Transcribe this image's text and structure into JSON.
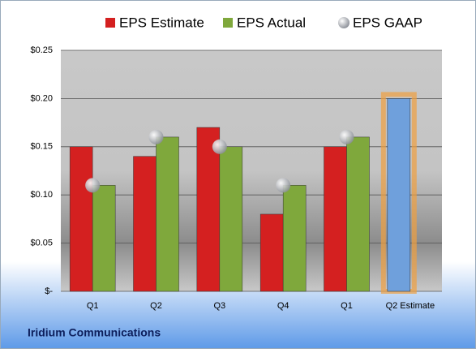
{
  "chart_data": {
    "type": "bar",
    "footer": "Iridium Communications",
    "categories": [
      "Q1",
      "Q2",
      "Q3",
      "Q4",
      "Q1",
      "Q2 Estimate"
    ],
    "series": [
      {
        "name": "EPS Estimate",
        "color": "#d42020",
        "colors": [
          "#d42020",
          "#d42020",
          "#d42020",
          "#d42020",
          "#d42020",
          "#6fa0dc"
        ],
        "values": [
          0.15,
          0.14,
          0.17,
          0.08,
          0.15,
          0.2
        ]
      },
      {
        "name": "EPS Actual",
        "color": "#7fa83c",
        "values": [
          0.11,
          0.16,
          0.15,
          0.11,
          0.16,
          null
        ]
      },
      {
        "name": "EPS GAAP",
        "color": "#b8bcc2",
        "marker": "circle",
        "values": [
          0.11,
          0.16,
          0.15,
          0.11,
          0.16,
          null
        ]
      }
    ],
    "ylim": [
      0,
      0.25
    ],
    "yticks": [
      {
        "value": 0,
        "label": "$-"
      },
      {
        "value": 0.05,
        "label": "$0.05"
      },
      {
        "value": 0.1,
        "label": "$0.10"
      },
      {
        "value": 0.15,
        "label": "$0.15"
      },
      {
        "value": 0.2,
        "label": "$0.20"
      },
      {
        "value": 0.25,
        "label": "$0.25"
      }
    ],
    "grid": true
  }
}
